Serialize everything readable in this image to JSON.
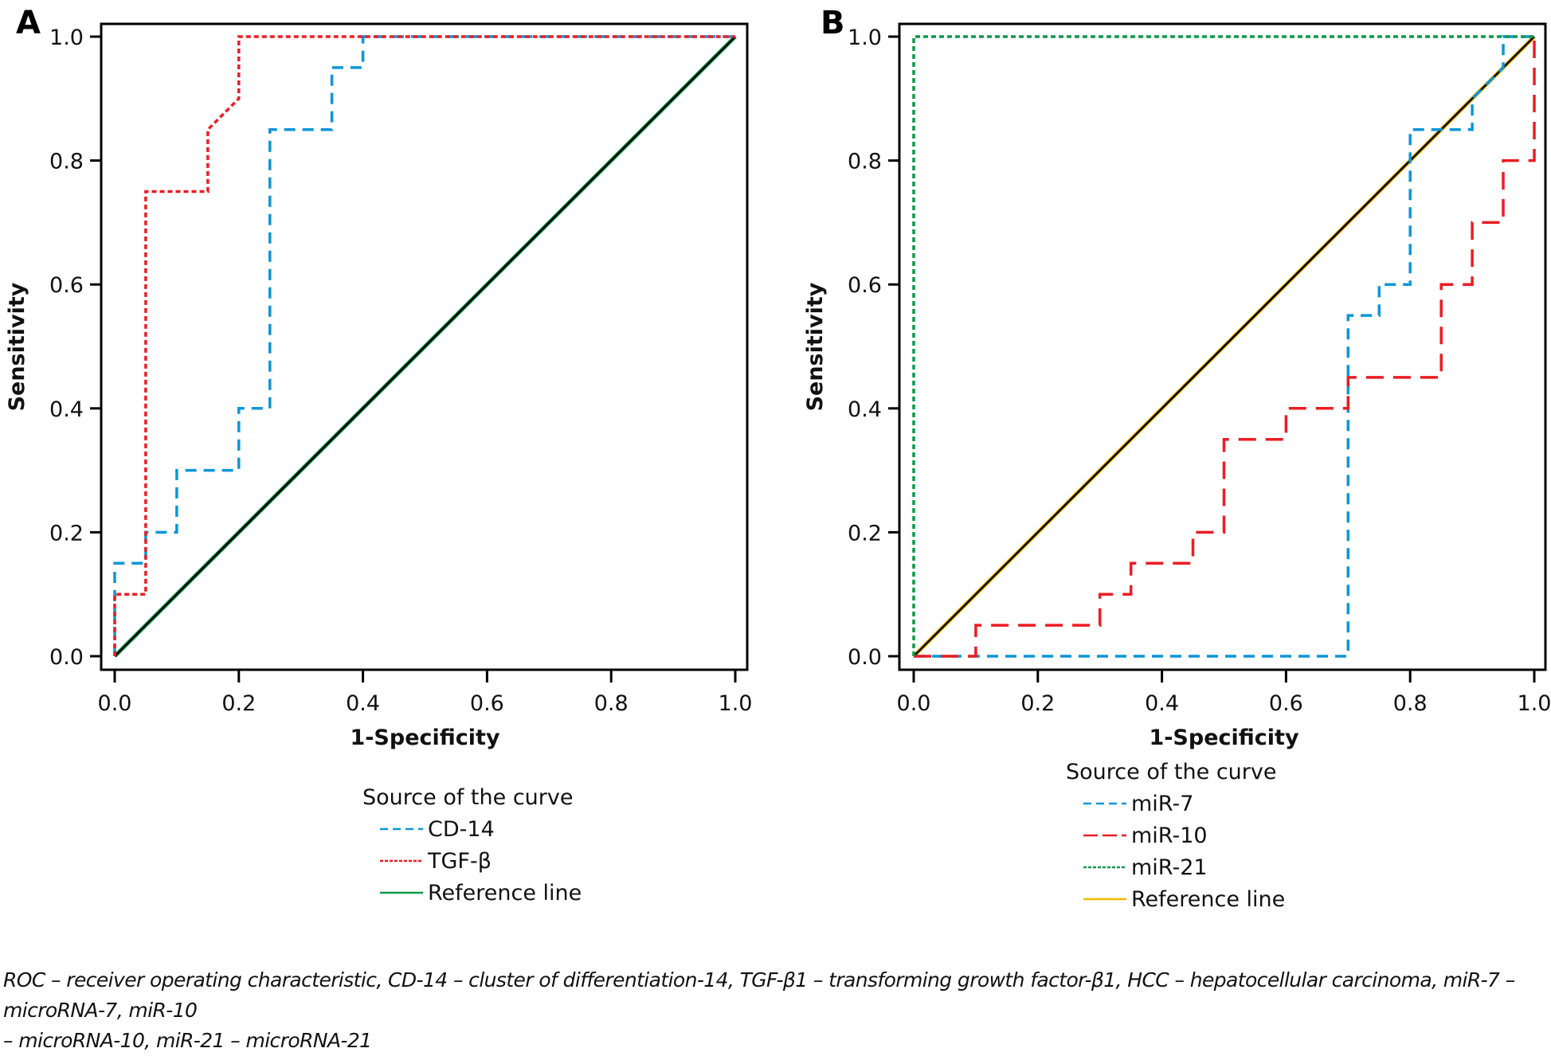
{
  "chart_data": [
    {
      "panel": "A",
      "type": "line",
      "xlabel": "1-Specificity",
      "ylabel": "Sensitivity",
      "xlim": [
        0,
        1
      ],
      "ylim": [
        0,
        1
      ],
      "xticks": [
        "0.0",
        "0.2",
        "0.4",
        "0.6",
        "0.8",
        "1.0"
      ],
      "yticks": [
        "0.0",
        "0.2",
        "0.4",
        "0.6",
        "0.8",
        "1.0"
      ],
      "grid": false,
      "legend_title": "Source of the curve",
      "legend_placement": "bottom-center",
      "series": [
        {
          "name": "CD-14",
          "color": "#0a96d9",
          "dash": "dashed",
          "points": [
            [
              0,
              0
            ],
            [
              0,
              0.15
            ],
            [
              0.05,
              0.15
            ],
            [
              0.05,
              0.2
            ],
            [
              0.1,
              0.2
            ],
            [
              0.1,
              0.3
            ],
            [
              0.2,
              0.3
            ],
            [
              0.2,
              0.4
            ],
            [
              0.25,
              0.4
            ],
            [
              0.25,
              0.85
            ],
            [
              0.35,
              0.85
            ],
            [
              0.35,
              0.95
            ],
            [
              0.4,
              0.95
            ],
            [
              0.4,
              1
            ],
            [
              1,
              1
            ]
          ]
        },
        {
          "name": "TGF-β",
          "color": "#ec1c24",
          "dash": "dotted",
          "points": [
            [
              0,
              0
            ],
            [
              0,
              0.1
            ],
            [
              0.05,
              0.1
            ],
            [
              0.05,
              0.75
            ],
            [
              0.15,
              0.75
            ],
            [
              0.15,
              0.85
            ],
            [
              0.2,
              0.9
            ],
            [
              0.2,
              1
            ],
            [
              1,
              1
            ]
          ]
        },
        {
          "name": "Reference line",
          "color": "#0a9a4a",
          "dash": "solid",
          "points": [
            [
              0,
              0
            ],
            [
              1,
              1
            ]
          ]
        }
      ]
    },
    {
      "panel": "B",
      "type": "line",
      "xlabel": "1-Specificity",
      "ylabel": "Sensitivity",
      "xlim": [
        0,
        1
      ],
      "ylim": [
        0,
        1
      ],
      "xticks": [
        "0.0",
        "0.2",
        "0.4",
        "0.6",
        "0.8",
        "1.0"
      ],
      "yticks": [
        "0.0",
        "0.2",
        "0.4",
        "0.6",
        "0.8",
        "1.0"
      ],
      "grid": false,
      "legend_title": "Source of the curve",
      "legend_placement": "bottom-center",
      "series": [
        {
          "name": "miR-7",
          "color": "#0a96d9",
          "dash": "dashed",
          "points": [
            [
              0,
              0
            ],
            [
              0.7,
              0
            ],
            [
              0.7,
              0.55
            ],
            [
              0.75,
              0.55
            ],
            [
              0.75,
              0.6
            ],
            [
              0.8,
              0.6
            ],
            [
              0.8,
              0.85
            ],
            [
              0.9,
              0.85
            ],
            [
              0.9,
              0.9
            ],
            [
              0.95,
              0.95
            ],
            [
              0.95,
              1
            ],
            [
              1,
              1
            ]
          ]
        },
        {
          "name": "miR-10",
          "color": "#ec1c24",
          "dash": "longdash",
          "points": [
            [
              0,
              0
            ],
            [
              0.1,
              0
            ],
            [
              0.1,
              0.05
            ],
            [
              0.3,
              0.05
            ],
            [
              0.3,
              0.1
            ],
            [
              0.35,
              0.1
            ],
            [
              0.35,
              0.15
            ],
            [
              0.45,
              0.15
            ],
            [
              0.45,
              0.2
            ],
            [
              0.5,
              0.2
            ],
            [
              0.5,
              0.35
            ],
            [
              0.6,
              0.35
            ],
            [
              0.6,
              0.4
            ],
            [
              0.7,
              0.4
            ],
            [
              0.7,
              0.45
            ],
            [
              0.85,
              0.45
            ],
            [
              0.85,
              0.6
            ],
            [
              0.9,
              0.6
            ],
            [
              0.9,
              0.7
            ],
            [
              0.95,
              0.7
            ],
            [
              0.95,
              0.8
            ],
            [
              1,
              0.8
            ],
            [
              1,
              1
            ]
          ]
        },
        {
          "name": "miR-21",
          "color": "#0a9a4a",
          "dash": "dotted",
          "points": [
            [
              0,
              0
            ],
            [
              0,
              1
            ],
            [
              1,
              1
            ]
          ]
        },
        {
          "name": "Reference line",
          "color": "#f5b800",
          "dash": "solid",
          "points": [
            [
              0,
              0
            ],
            [
              1,
              1
            ]
          ]
        }
      ]
    }
  ],
  "panels": {
    "a_label": "A",
    "b_label": "B"
  },
  "caption": {
    "line1": "ROC – receiver operating characteristic, CD-14 – cluster of differentiation-14, TGF-β1 – transforming growth factor-β1, HCC – hepatocellular carcinoma, miR-7 – microRNA-7, miR-10",
    "line2": "– microRNA-10, miR-21 – microRNA-21"
  }
}
